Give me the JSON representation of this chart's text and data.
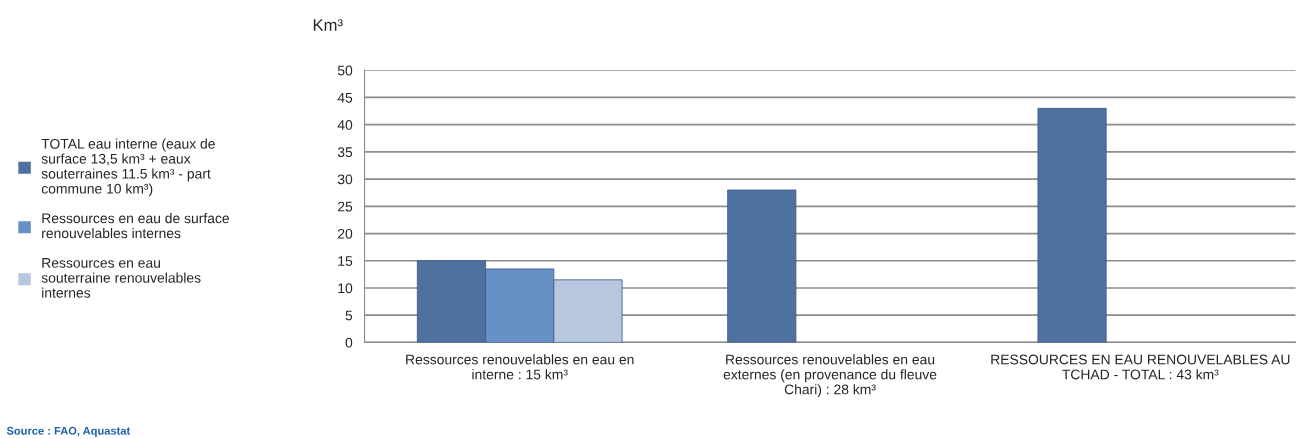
{
  "chart_data": {
    "type": "bar",
    "ylabel": "Km³",
    "categories": [
      "Ressources renouvelables en eau en interne : 15 km³",
      "Ressources renouvelables en eau externes (en provenance du fleuve Chari) : 28 km³",
      "RESSOURCES EN EAU RENOUVELABLES AU TCHAD - TOTAL : 43 km³"
    ],
    "series": [
      {
        "name": "TOTAL eau interne (eaux de surface 13,5 km³ + eaux souterraines 11.5 km³ - part commune 10 km³)",
        "color": "#4f71a0",
        "values": [
          15,
          28,
          43
        ]
      },
      {
        "name": "Ressources en eau de surface renouvelables internes",
        "color": "#6690c6",
        "values": [
          13.5,
          null,
          null
        ]
      },
      {
        "name": "Ressources en eau souterraine renouvelables internes",
        "color": "#b8c7e0",
        "values": [
          11.5,
          null,
          null
        ]
      }
    ],
    "ylim": [
      0,
      50
    ],
    "yticks": [
      0,
      5,
      10,
      15,
      20,
      25,
      30,
      35,
      40,
      45,
      50
    ],
    "grid": "y",
    "legend": "left",
    "annotations": [
      "Source : FAO, Aquastat"
    ]
  }
}
